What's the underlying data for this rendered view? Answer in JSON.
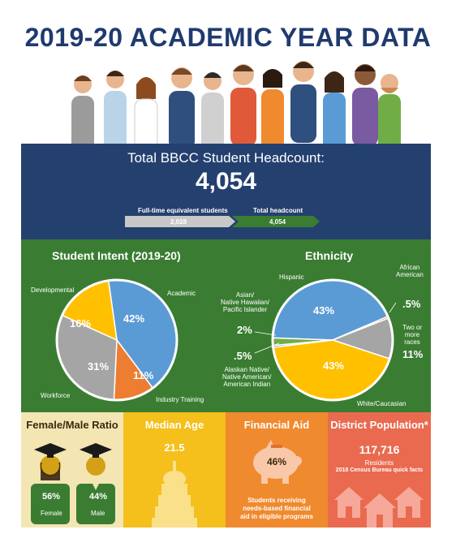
{
  "page": {
    "title": "2019-20 ACADEMIC YEAR DATA"
  },
  "headcount": {
    "label": "Total BBCC Student Headcount:",
    "value": "4,054",
    "fte_label": "Full-time equivalent students",
    "fte_value": "2,028",
    "total_label": "Total headcount",
    "total_value": "4,054"
  },
  "chart_data": [
    {
      "type": "pie",
      "title": "Student Intent (2019-20)",
      "categories": [
        "Academic",
        "Industry Training",
        "Workforce",
        "Developmental"
      ],
      "values": [
        42,
        11,
        31,
        16
      ],
      "value_labels": [
        "42%",
        "11%",
        "31%",
        "16%"
      ],
      "colors": [
        "#5b9bd5",
        "#ed7d31",
        "#a5a5a5",
        "#ffc000"
      ]
    },
    {
      "type": "pie",
      "title": "Ethnicity",
      "categories": [
        "Hispanic",
        "African American",
        "Two or more races",
        "White/Caucasian",
        "Alaskan Native/ Native American/ American Indian",
        "Asian/ Native Hawaiian/ Pacific Islander"
      ],
      "values": [
        43,
        0.5,
        11,
        43,
        0.5,
        2
      ],
      "value_labels": [
        "43%",
        ".5%",
        "11%",
        "43%",
        ".5%",
        "2%"
      ],
      "colors": [
        "#5b9bd5",
        "#ed7d31",
        "#a5a5a5",
        "#ffc000",
        "#4472c4",
        "#70ad47"
      ]
    }
  ],
  "intent_labels": {
    "academic": "Academic",
    "industry": "Industry Training",
    "workforce": "Workforce",
    "developmental": "Developmental"
  },
  "ethnicity_labels": {
    "hispanic": "Hispanic",
    "african_line1": "African",
    "african_line2": "American",
    "two_line1": "Two or",
    "two_line2": "more",
    "two_line3": "races",
    "white": "White/Caucasian",
    "alaskan_line1": "Alaskan Native/",
    "alaskan_line2": "Native American/",
    "alaskan_line3": "American Indian",
    "asian_line1": "Asian/",
    "asian_line2": "Native Hawaiian/",
    "asian_line3": "Pacific Islander"
  },
  "gender": {
    "title": "Female/Male Ratio",
    "female_pct": "56%",
    "female_label": "Female",
    "male_pct": "44%",
    "male_label": "Male"
  },
  "age": {
    "title": "Median Age",
    "value": "21.5"
  },
  "aid": {
    "title": "Financial Aid",
    "value": "46%",
    "desc_line1": "Students receiving",
    "desc_line2": "needs-based financial",
    "desc_line3": "aid in eligible programs"
  },
  "district": {
    "title": "District Population*",
    "value": "117,716",
    "unit": "Residents",
    "source": "2018 Census Bureau quick facts"
  },
  "colors": {
    "navy": "#24406f",
    "green": "#3a7d32",
    "tan": "#f3e6b3",
    "yellow": "#f5bf1c",
    "orange": "#f08a2e",
    "salmon": "#ea6a4f"
  }
}
